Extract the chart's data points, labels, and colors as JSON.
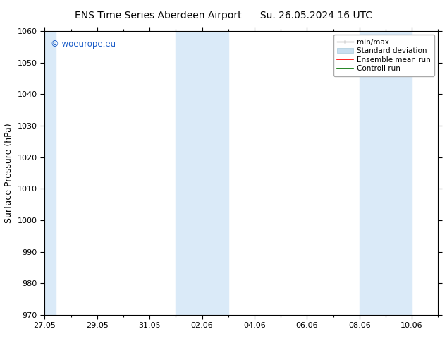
{
  "title_left": "ENS Time Series Aberdeen Airport",
  "title_right": "Su. 26.05.2024 16 UTC",
  "ylabel": "Surface Pressure (hPa)",
  "ylim": [
    970,
    1060
  ],
  "yticks": [
    970,
    980,
    990,
    1000,
    1010,
    1020,
    1030,
    1040,
    1050,
    1060
  ],
  "xlim_start_days": 0,
  "xlim_end_days": 15,
  "xtick_labels": [
    "27.05",
    "29.05",
    "31.05",
    "02.06",
    "04.06",
    "06.06",
    "08.06",
    "10.06"
  ],
  "xtick_day_offsets": [
    0,
    2,
    4,
    6,
    8,
    10,
    12,
    14
  ],
  "shaded_bands": [
    {
      "xstart_days": 0,
      "xend_days": 0.5,
      "color": "#d6e8f5"
    },
    {
      "xstart_days": 5,
      "xend_days": 6,
      "color": "#d6e8f5"
    },
    {
      "xstart_days": 6,
      "xend_days": 7,
      "color": "#daeaf7"
    },
    {
      "xstart_days": 12,
      "xend_days": 13,
      "color": "#d6e8f5"
    },
    {
      "xstart_days": 13,
      "xend_days": 14,
      "color": "#daeaf7"
    }
  ],
  "legend_items": [
    {
      "label": "min/max",
      "color": "#aaaaaa",
      "lw": 1.0
    },
    {
      "label": "Standard deviation",
      "color": "#c8dff0",
      "lw": 8
    },
    {
      "label": "Ensemble mean run",
      "color": "#ff0000",
      "lw": 1.2
    },
    {
      "label": "Controll run",
      "color": "#007000",
      "lw": 1.2
    }
  ],
  "watermark": "© woeurope.eu",
  "watermark_color": "#1a5cc8",
  "background_color": "#ffffff",
  "title_fontsize": 10,
  "label_fontsize": 9,
  "tick_fontsize": 8,
  "legend_fontsize": 7.5,
  "band_color": "#daeaf8"
}
